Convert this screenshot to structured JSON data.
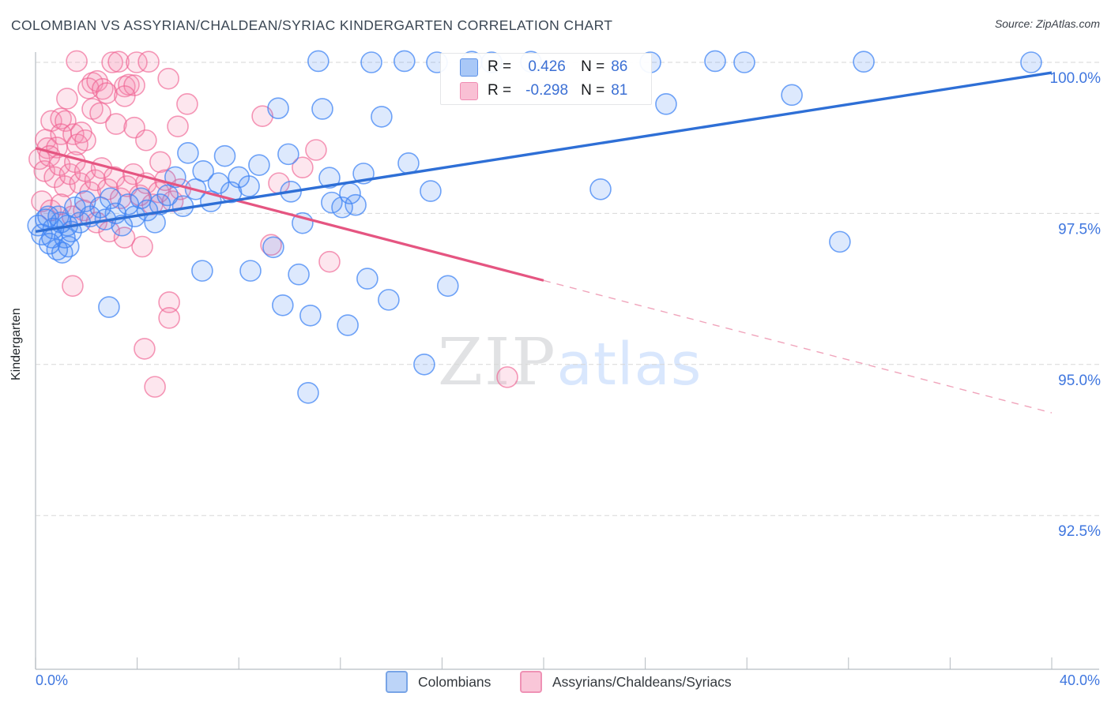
{
  "title": "COLOMBIAN VS ASSYRIAN/CHALDEAN/SYRIAC KINDERGARTEN CORRELATION CHART",
  "source": "Source: ZipAtlas.com",
  "watermark": {
    "zip": "ZIP",
    "atlas": "atlas"
  },
  "y_axis": {
    "label": "Kindergarten",
    "tick_labels": [
      "100.0%",
      "97.5%",
      "95.0%",
      "92.5%"
    ],
    "tick_values": [
      100.0,
      97.5,
      95.0,
      92.5
    ]
  },
  "x_axis": {
    "min_label": "0.0%",
    "max_label": "40.0%",
    "min": 0,
    "max": 40,
    "tick_count": 11
  },
  "legend_box": {
    "rows": [
      {
        "series": "Colombians",
        "r_label": "R =",
        "r_value": "0.426",
        "n_label": "N =",
        "n_value": "86"
      },
      {
        "series": "Assyrians/Chaldeans/Syriacs",
        "r_label": "R =",
        "r_value": "-0.298",
        "n_label": "N =",
        "n_value": "81"
      }
    ]
  },
  "bottom_legend": {
    "items": [
      {
        "label": "Colombians"
      },
      {
        "label": "Assyrians/Chaldeans/Syriacs"
      }
    ]
  },
  "chart_data": {
    "type": "scatter",
    "title": "COLOMBIAN VS ASSYRIAN/CHALDEAN/SYRIAC KINDERGARTEN CORRELATION CHART",
    "xlabel": "",
    "ylabel": "Kindergarten",
    "x_range": [
      0,
      40
    ],
    "y_gridlines": [
      100.0,
      97.5,
      95.0,
      92.5
    ],
    "grid": "dashed-horizontal",
    "legend_position": "top-center",
    "series": [
      {
        "name": "Colombians",
        "r": 0.426,
        "n": 86,
        "stroke": "rgba(66,133,244,0.75)",
        "fill": "rgba(66,133,244,0.18)",
        "trend": {
          "start": [
            0,
            97.2
          ],
          "end": [
            40,
            99.83
          ],
          "color": "#2e6fd6",
          "style": "solid"
        },
        "points": [
          [
            11.13,
            100.02
          ],
          [
            13.22,
            100.0
          ],
          [
            14.52,
            100.02
          ],
          [
            15.8,
            100.0
          ],
          [
            17.17,
            100.01
          ],
          [
            17.95,
            100.0
          ],
          [
            19.5,
            100.01
          ],
          [
            24.2,
            100.0
          ],
          [
            26.75,
            100.02
          ],
          [
            27.9,
            100.0
          ],
          [
            32.6,
            100.01
          ],
          [
            39.19,
            100.0
          ],
          [
            9.55,
            99.24
          ],
          [
            11.29,
            99.23
          ],
          [
            13.62,
            99.1
          ],
          [
            29.77,
            99.46
          ],
          [
            24.82,
            99.31
          ],
          [
            31.66,
            97.03
          ],
          [
            9.95,
            98.48
          ],
          [
            11.57,
            98.09
          ],
          [
            10.05,
            97.86
          ],
          [
            12.91,
            98.16
          ],
          [
            12.38,
            97.83
          ],
          [
            12.6,
            97.64
          ],
          [
            11.66,
            97.68
          ],
          [
            12.07,
            97.6
          ],
          [
            14.68,
            98.33
          ],
          [
            15.55,
            97.87
          ],
          [
            22.24,
            97.9
          ],
          [
            10.51,
            97.34
          ],
          [
            9.36,
            96.94
          ],
          [
            10.36,
            96.49
          ],
          [
            13.06,
            96.42
          ],
          [
            9.73,
            95.98
          ],
          [
            10.82,
            95.81
          ],
          [
            13.9,
            96.07
          ],
          [
            12.29,
            95.65
          ],
          [
            16.23,
            96.3
          ],
          [
            15.3,
            95.0
          ],
          [
            10.73,
            94.53
          ],
          [
            2.89,
            95.95
          ],
          [
            6.56,
            96.55
          ],
          [
            8.46,
            96.55
          ],
          [
            0.1,
            97.3
          ],
          [
            0.25,
            97.15
          ],
          [
            0.4,
            97.4
          ],
          [
            0.55,
            97.0
          ],
          [
            0.7,
            97.25
          ],
          [
            0.85,
            96.9
          ],
          [
            1.0,
            97.35
          ],
          [
            1.15,
            97.1
          ],
          [
            1.3,
            96.95
          ],
          [
            0.5,
            97.45
          ],
          [
            0.9,
            97.45
          ],
          [
            1.25,
            97.3
          ],
          [
            0.65,
            97.1
          ],
          [
            1.05,
            96.85
          ],
          [
            1.4,
            97.2
          ],
          [
            1.55,
            97.6
          ],
          [
            1.75,
            97.35
          ],
          [
            1.95,
            97.7
          ],
          [
            2.15,
            97.45
          ],
          [
            2.55,
            97.6
          ],
          [
            2.75,
            97.4
          ],
          [
            2.95,
            97.75
          ],
          [
            3.15,
            97.5
          ],
          [
            3.4,
            97.3
          ],
          [
            3.65,
            97.65
          ],
          [
            3.9,
            97.45
          ],
          [
            4.15,
            97.75
          ],
          [
            4.4,
            97.55
          ],
          [
            4.7,
            97.35
          ],
          [
            4.9,
            97.65
          ],
          [
            5.2,
            97.8
          ],
          [
            5.5,
            98.1
          ],
          [
            6.0,
            98.5
          ],
          [
            6.3,
            97.9
          ],
          [
            6.6,
            98.2
          ],
          [
            6.9,
            97.7
          ],
          [
            7.2,
            98.0
          ],
          [
            7.45,
            98.45
          ],
          [
            7.7,
            97.85
          ],
          [
            8.0,
            98.1
          ],
          [
            8.4,
            97.95
          ],
          [
            8.8,
            98.3
          ],
          [
            5.8,
            97.62
          ]
        ]
      },
      {
        "name": "Assyrians/Chaldeans/Syriacs",
        "r": -0.298,
        "n": 81,
        "stroke": "rgba(240,98,146,0.65)",
        "fill": "rgba(244,143,177,0.22)",
        "trend": {
          "start": [
            0,
            98.58
          ],
          "mid": [
            20,
            96.39
          ],
          "end": [
            40,
            94.2
          ],
          "solid_until": 20,
          "color": "#e55581",
          "dash_color": "#f0a4bb",
          "style": "solid-then-dashed"
        },
        "points": [
          [
            1.62,
            100.02
          ],
          [
            3.02,
            100.0
          ],
          [
            3.27,
            100.01
          ],
          [
            3.98,
            100.0
          ],
          [
            4.45,
            100.01
          ],
          [
            2.24,
            99.66
          ],
          [
            2.08,
            99.57
          ],
          [
            2.43,
            99.69
          ],
          [
            2.64,
            99.56
          ],
          [
            2.8,
            99.49
          ],
          [
            1.24,
            99.4
          ],
          [
            3.51,
            99.6
          ],
          [
            3.67,
            99.63
          ],
          [
            3.89,
            99.62
          ],
          [
            3.51,
            99.44
          ],
          [
            5.23,
            99.73
          ],
          [
            2.24,
            99.23
          ],
          [
            2.55,
            99.16
          ],
          [
            3.17,
            98.98
          ],
          [
            3.89,
            98.92
          ],
          [
            5.97,
            99.31
          ],
          [
            5.6,
            98.94
          ],
          [
            8.93,
            99.11
          ],
          [
            4.35,
            98.71
          ],
          [
            0.62,
            99.03
          ],
          [
            1.0,
            99.07
          ],
          [
            1.18,
            99.03
          ],
          [
            0.4,
            98.72
          ],
          [
            1.0,
            98.81
          ],
          [
            1.49,
            98.81
          ],
          [
            1.8,
            98.84
          ],
          [
            1.65,
            98.64
          ],
          [
            1.96,
            98.71
          ],
          [
            0.47,
            98.58
          ],
          [
            0.84,
            98.59
          ],
          [
            4.91,
            98.35
          ],
          [
            11.04,
            98.55
          ],
          [
            10.51,
            98.26
          ],
          [
            9.58,
            98.0
          ],
          [
            11.57,
            96.7
          ],
          [
            18.57,
            94.79
          ],
          [
            9.27,
            96.98
          ],
          [
            1.46,
            96.3
          ],
          [
            5.26,
            96.03
          ],
          [
            5.26,
            95.77
          ],
          [
            4.29,
            95.26
          ],
          [
            4.7,
            94.63
          ],
          [
            0.15,
            98.4
          ],
          [
            0.35,
            98.2
          ],
          [
            0.55,
            98.45
          ],
          [
            0.75,
            98.1
          ],
          [
            0.95,
            98.3
          ],
          [
            1.15,
            97.95
          ],
          [
            1.35,
            98.15
          ],
          [
            1.55,
            98.35
          ],
          [
            1.75,
            98.0
          ],
          [
            1.95,
            98.2
          ],
          [
            2.15,
            97.85
          ],
          [
            2.35,
            98.05
          ],
          [
            2.6,
            98.25
          ],
          [
            2.85,
            97.9
          ],
          [
            3.1,
            98.1
          ],
          [
            3.35,
            97.75
          ],
          [
            3.6,
            97.95
          ],
          [
            3.85,
            98.15
          ],
          [
            4.1,
            97.8
          ],
          [
            4.35,
            98.0
          ],
          [
            4.6,
            97.65
          ],
          [
            4.85,
            97.85
          ],
          [
            5.1,
            98.05
          ],
          [
            5.4,
            97.7
          ],
          [
            5.7,
            97.9
          ],
          [
            0.25,
            97.7
          ],
          [
            0.6,
            97.55
          ],
          [
            1.0,
            97.65
          ],
          [
            1.45,
            97.45
          ],
          [
            1.9,
            97.55
          ],
          [
            2.4,
            97.35
          ],
          [
            2.9,
            97.2
          ],
          [
            3.5,
            97.1
          ],
          [
            4.2,
            96.95
          ]
        ]
      }
    ]
  },
  "colors": {
    "grid": "#d7d7d7",
    "axis": "#c3c9ce",
    "tick": "#b6bcc1",
    "axis_label_blue": "#4077df",
    "title_text": "#3b4754",
    "legend_value_blue": "#3b6fd4"
  }
}
